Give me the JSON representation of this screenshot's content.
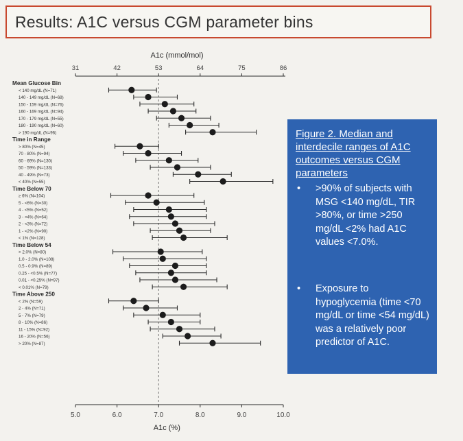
{
  "slide": {
    "title": "Results: A1C versus CGM parameter bins"
  },
  "info_box": {
    "title": "Figure 2. Median and interdecile ranges of A1C outcomes versus CGM parameters",
    "bullets": [
      ">90% of subjects with MSG <140 mg/dL, TIR >80%, or time >250 mg/dL <2% had A1C values <7.0%.",
      "Exposure to hypoglycemia (time <70 mg/dL or time <54 mg/dL) was a relatively poor predictor of A1C."
    ]
  },
  "chart_data": {
    "type": "forest",
    "top_axis": {
      "label": "A1c (mmol/mol)",
      "ticks": [
        "31",
        "42",
        "53",
        "64",
        "75",
        "86"
      ],
      "tick_values": [
        5.0,
        6.0,
        7.0,
        8.0,
        9.0,
        10.0
      ]
    },
    "bottom_axis": {
      "label": "A1c (%)",
      "ticks": [
        "5.0",
        "6.0",
        "7.0",
        "8.0",
        "9.0",
        "10.0"
      ],
      "tick_values": [
        5.0,
        6.0,
        7.0,
        8.0,
        9.0,
        10.0
      ]
    },
    "xlim": [
      5.0,
      10.0
    ],
    "reference_line": 7.0,
    "groups": [
      {
        "name": "Mean Glucose Bin",
        "rows": [
          {
            "label": "< 140 mg/dL (N=71)",
            "median": 6.35,
            "low": 5.8,
            "high": 6.95
          },
          {
            "label": "140 - 149 mg/dL (N=68)",
            "median": 6.75,
            "low": 6.4,
            "high": 7.45
          },
          {
            "label": "150 - 159 mg/dL (N=76)",
            "median": 7.15,
            "low": 6.55,
            "high": 7.85
          },
          {
            "label": "160 - 169 mg/dL (N=94)",
            "median": 7.35,
            "low": 6.75,
            "high": 7.9
          },
          {
            "label": "170 - 179 mg/dL (N=55)",
            "median": 7.55,
            "low": 6.95,
            "high": 8.25
          },
          {
            "label": "180 - 190 mg/dL (N=60)",
            "median": 7.75,
            "low": 7.25,
            "high": 8.45
          },
          {
            "label": "> 190 mg/dL (N=96)",
            "median": 8.3,
            "low": 7.65,
            "high": 9.35
          }
        ]
      },
      {
        "name": "Time in Range",
        "rows": [
          {
            "label": "> 80% (N=45)",
            "median": 6.55,
            "low": 5.95,
            "high": 7.0
          },
          {
            "label": "70 - 80% (N=94)",
            "median": 6.75,
            "low": 6.15,
            "high": 7.55
          },
          {
            "label": "60 - 69% (N=130)",
            "median": 7.25,
            "low": 6.45,
            "high": 7.95
          },
          {
            "label": "50 - 59% (N=133)",
            "median": 7.45,
            "low": 6.8,
            "high": 8.25
          },
          {
            "label": "40 - 49% (N=73)",
            "median": 7.95,
            "low": 7.35,
            "high": 8.75
          },
          {
            "label": "< 40% (N=55)",
            "median": 8.55,
            "low": 7.75,
            "high": 9.75
          }
        ]
      },
      {
        "name": "Time Below 70",
        "rows": [
          {
            "label": "≥ 6% (N=104)",
            "median": 6.75,
            "low": 5.85,
            "high": 7.85
          },
          {
            "label": "5 - <6% (N=30)",
            "median": 6.95,
            "low": 6.2,
            "high": 8.1
          },
          {
            "label": "4 - <5% (N=52)",
            "median": 7.25,
            "low": 6.4,
            "high": 8.15
          },
          {
            "label": "3 - <4% (N=64)",
            "median": 7.3,
            "low": 6.3,
            "high": 8.15
          },
          {
            "label": "2 - <3% (N=72)",
            "median": 7.4,
            "low": 6.4,
            "high": 8.35
          },
          {
            "label": "1 - <2% (N=90)",
            "median": 7.5,
            "low": 6.8,
            "high": 8.25
          },
          {
            "label": "< 1% (N=128)",
            "median": 7.6,
            "low": 6.85,
            "high": 8.65
          }
        ]
      },
      {
        "name": "Time Below 54",
        "rows": [
          {
            "label": "> 2.0% (N=80)",
            "median": 7.05,
            "low": 5.9,
            "high": 8.05
          },
          {
            "label": "1.0 - 2.0% (N=108)",
            "median": 7.1,
            "low": 6.15,
            "high": 8.15
          },
          {
            "label": "0.5 - 0.9% (N=89)",
            "median": 7.4,
            "low": 6.3,
            "high": 8.15
          },
          {
            "label": "0.25 - <0.5% (N=77)",
            "median": 7.3,
            "low": 6.45,
            "high": 8.15
          },
          {
            "label": "0.01 - <0.25% (N=97)",
            "median": 7.4,
            "low": 6.55,
            "high": 8.4
          },
          {
            "label": "< 0.01% (N=79)",
            "median": 7.6,
            "low": 6.85,
            "high": 8.65
          }
        ]
      },
      {
        "name": "Time Above 250",
        "rows": [
          {
            "label": "< 2% (N=59)",
            "median": 6.4,
            "low": 5.8,
            "high": 7.0
          },
          {
            "label": "2 - 4% (N=71)",
            "median": 6.7,
            "low": 6.15,
            "high": 7.45
          },
          {
            "label": "5 - 7% (N=79)",
            "median": 7.1,
            "low": 6.4,
            "high": 8.0
          },
          {
            "label": "8 - 10% (N=86)",
            "median": 7.3,
            "low": 6.75,
            "high": 8.0
          },
          {
            "label": "11 - 15% (N=92)",
            "median": 7.5,
            "low": 6.8,
            "high": 8.35
          },
          {
            "label": "16 - 20% (N=56)",
            "median": 7.7,
            "low": 7.1,
            "high": 8.5
          },
          {
            "label": "> 20% (N=87)",
            "median": 8.3,
            "low": 7.5,
            "high": 9.45
          }
        ]
      }
    ]
  }
}
